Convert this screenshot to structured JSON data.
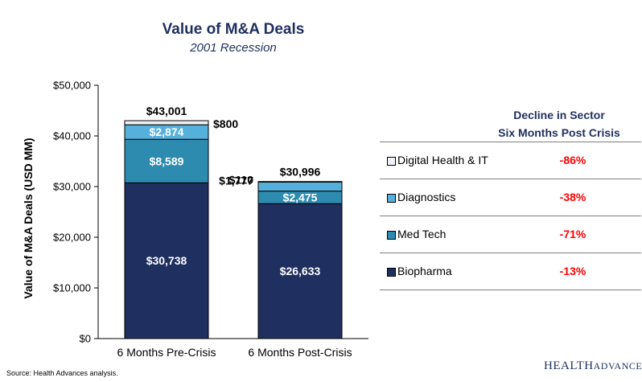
{
  "chart_data": {
    "type": "bar",
    "stacked": true,
    "title": "Value of M&A Deals",
    "subtitle": "2001 Recession",
    "ylabel": "Value of M&A Deals (USD MM)",
    "xlabel": "",
    "ylim": [
      0,
      50000
    ],
    "yticks": [
      "$0",
      "$10,000",
      "$20,000",
      "$30,000",
      "$40,000",
      "$50,000"
    ],
    "categories": [
      "6 Months Pre-Crisis",
      "6 Months Post-Crisis"
    ],
    "series": [
      {
        "name": "Biopharma",
        "color": "#1f2f5f",
        "values": [
          30738,
          26633
        ],
        "labels": [
          "$30,738",
          "$26,633"
        ]
      },
      {
        "name": "Med Tech",
        "color": "#2e8bb0",
        "values": [
          8589,
          2475
        ],
        "labels": [
          "$8,589",
          "$2,475"
        ]
      },
      {
        "name": "Diagnostics",
        "color": "#55b0dc",
        "values": [
          2874,
          1777
        ],
        "labels": [
          "$2,874",
          "$1,777"
        ]
      },
      {
        "name": "Digital Health & IT",
        "color": "#eef2f8",
        "values": [
          800,
          110
        ],
        "labels": [
          "$800",
          "$110"
        ]
      }
    ],
    "totals": [
      "$43,001",
      "$30,996"
    ],
    "grid": false,
    "legend_position": "right"
  },
  "decline_table": {
    "header_line1": "Decline in Sector",
    "header_line2": "Six Months Post Crisis",
    "rows": [
      {
        "name": "Digital Health & IT",
        "decline": "-86%",
        "color": "#eef2f8"
      },
      {
        "name": "Diagnostics",
        "decline": "-38%",
        "color": "#55b0dc"
      },
      {
        "name": "Med Tech",
        "decline": "-71%",
        "color": "#2e8bb0"
      },
      {
        "name": "Biopharma",
        "decline": "-13%",
        "color": "#1f2f5f"
      }
    ]
  },
  "source": "Source:  Health Advances analysis.",
  "logo": {
    "line1": "HEALTH",
    "line2": "ADVANCES"
  }
}
